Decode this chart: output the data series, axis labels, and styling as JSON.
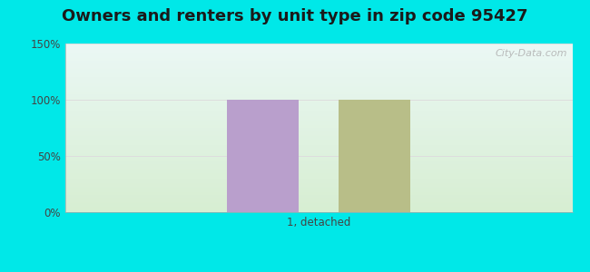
{
  "title": "Owners and renters by unit type in zip code 95427",
  "categories": [
    "1, detached"
  ],
  "owner_values": [
    100
  ],
  "renter_values": [
    100
  ],
  "owner_color": "#b99fcc",
  "renter_color": "#b8be88",
  "ylim": [
    0,
    150
  ],
  "yticks": [
    0,
    50,
    100,
    150
  ],
  "ytick_labels": [
    "0%",
    "50%",
    "100%",
    "150%"
  ],
  "bg_top": "#e8f8f5",
  "bg_bottom": "#d8efd4",
  "outer_bg": "#00e8e8",
  "watermark": "City-Data.com",
  "bar_width": 0.28,
  "title_fontsize": 13,
  "grid_color": "#dddddd"
}
